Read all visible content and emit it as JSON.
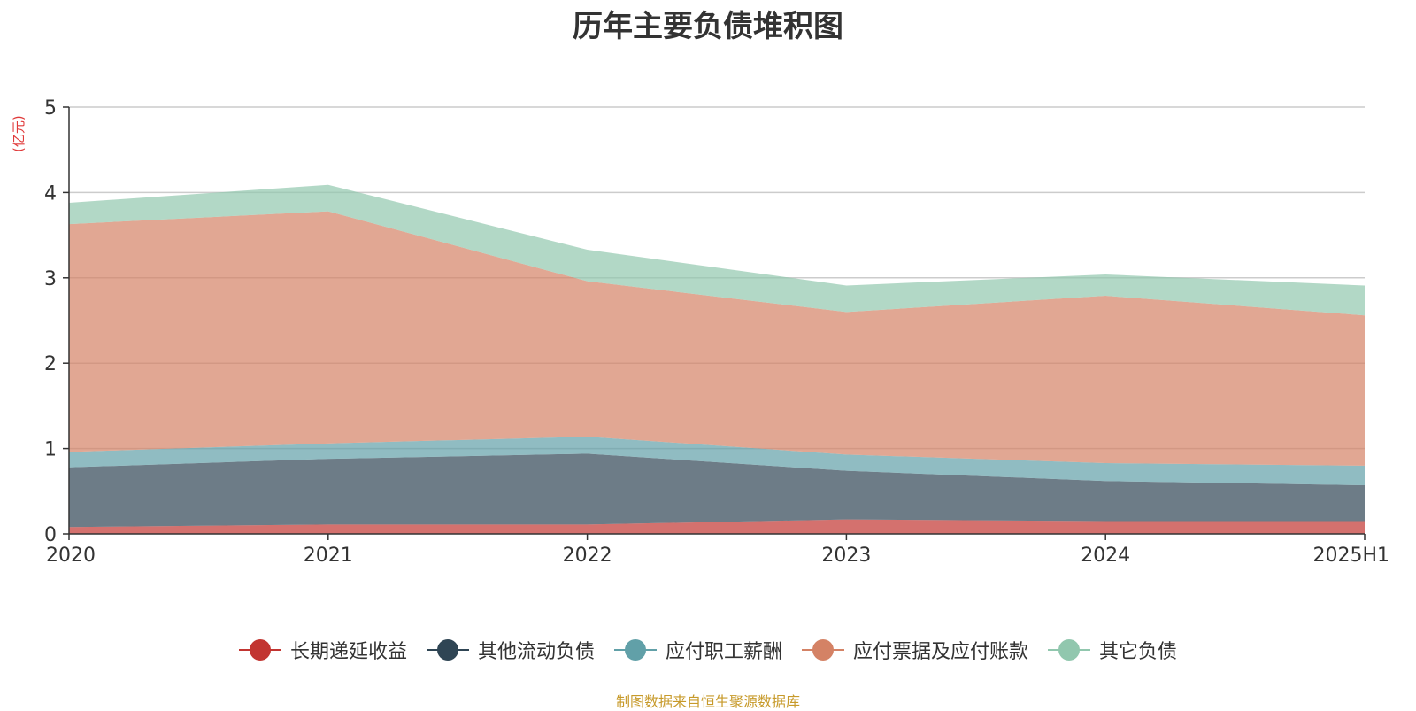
{
  "chart_data": {
    "type": "area",
    "stacked": true,
    "title": "历年主要负债堆积图",
    "unit_label": "(亿元)",
    "categories": [
      "2020",
      "2021",
      "2022",
      "2023",
      "2024",
      "2025H1"
    ],
    "ylim": [
      0,
      5
    ],
    "yticks": [
      "0",
      "1",
      "2",
      "3",
      "4",
      "5"
    ],
    "grid": true,
    "legend_position": "bottom",
    "series": [
      {
        "name": "长期递延收益",
        "color": "#c23531",
        "values": [
          0.08,
          0.11,
          0.11,
          0.17,
          0.15,
          0.15
        ]
      },
      {
        "name": "其他流动负债",
        "color": "#2f4554",
        "values": [
          0.7,
          0.77,
          0.83,
          0.57,
          0.47,
          0.42
        ]
      },
      {
        "name": "应付职工薪酬",
        "color": "#61a0a8",
        "values": [
          0.18,
          0.18,
          0.2,
          0.19,
          0.21,
          0.23
        ]
      },
      {
        "name": "应付票据及应付账款",
        "color": "#d48265",
        "values": [
          2.67,
          2.72,
          1.82,
          1.67,
          1.96,
          1.76
        ]
      },
      {
        "name": "其它负债",
        "color": "#91c7ae",
        "values": [
          0.25,
          0.31,
          0.37,
          0.31,
          0.25,
          0.35
        ]
      }
    ]
  },
  "footer": {
    "source": "制图数据来自恒生聚源数据库"
  }
}
